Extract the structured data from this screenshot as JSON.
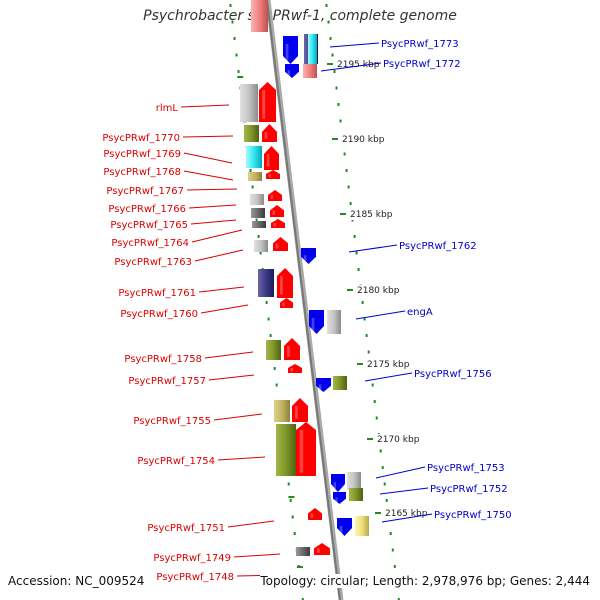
{
  "title": "Psychrobacter sp. PRwf-1, complete genome",
  "footer": {
    "accession": "Accession: NC_009524",
    "topology": "Topology: circular; Length: 2,978,976 bp; Genes: 2,444"
  },
  "ruler_labels": [
    "2195 kbp",
    "2190 kbp",
    "2185 kbp",
    "2180 kbp",
    "2175 kbp",
    "2170 kbp",
    "2165 kbp"
  ],
  "left_genes": [
    "rlmL",
    "PsycPRwf_1770",
    "PsycPRwf_1769",
    "PsycPRwf_1768",
    "PsycPRwf_1767",
    "PsycPRwf_1766",
    "PsycPRwf_1765",
    "PsycPRwf_1764",
    "PsycPRwf_1763",
    "PsycPRwf_1761",
    "PsycPRwf_1760",
    "PsycPRwf_1758",
    "PsycPRwf_1757",
    "PsycPRwf_1755",
    "PsycPRwf_1754",
    "PsycPRwf_1751",
    "PsycPRwf_1749",
    "PsycPRwf_1748"
  ],
  "right_genes": [
    "PsycPRwf_1773",
    "PsycPRwf_1772",
    "PsycPRwf_1762",
    "engA",
    "PsycPRwf_1756",
    "PsycPRwf_1753",
    "PsycPRwf_1752",
    "PsycPRwf_1750"
  ],
  "colors": {
    "forward_label": "#dd0000",
    "reverse_label": "#0000cc",
    "forward_gene": "#ff0000",
    "reverse_gene": "#0000ee",
    "backbone": "#888888",
    "ticks": "#228b22"
  }
}
